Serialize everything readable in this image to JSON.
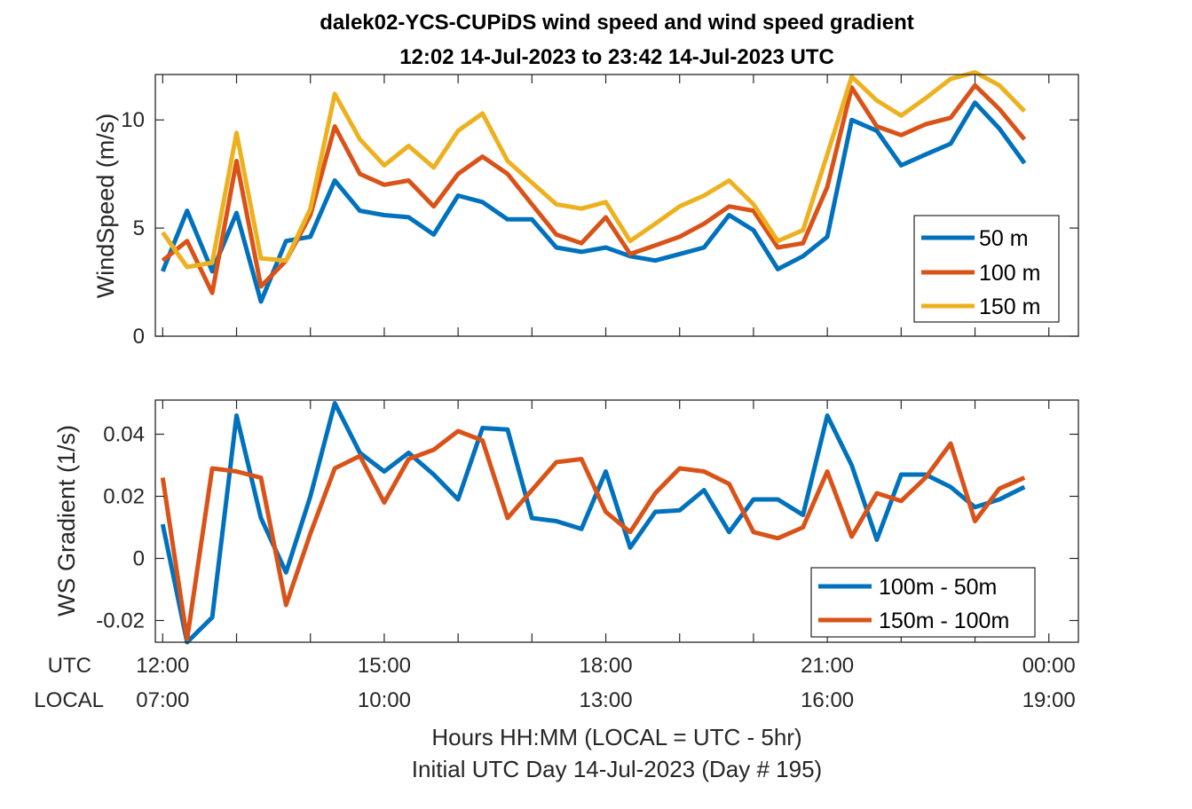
{
  "title": {
    "line1": "dalek02-YCS-CUPiDS  wind speed and wind speed gradient",
    "line2": "12:02 14-Jul-2023 to 23:42 14-Jul-2023  UTC"
  },
  "colors": {
    "blue": "#0072BD",
    "orange": "#D95319",
    "yellow": "#EDB120"
  },
  "chart_data": [
    {
      "type": "line",
      "ylabel": "WindSpeed (m/s)",
      "ylim": [
        0,
        12.1
      ],
      "yticks": [
        0,
        5,
        10
      ],
      "xlim_hours": [
        11.9,
        24.4
      ],
      "legend_position": "bottom-right",
      "x_hours": [
        12.0,
        12.33,
        12.67,
        13.0,
        13.33,
        13.67,
        14.0,
        14.33,
        14.67,
        15.0,
        15.33,
        15.67,
        16.0,
        16.33,
        16.67,
        17.0,
        17.33,
        17.67,
        18.0,
        18.33,
        18.67,
        19.0,
        19.33,
        19.67,
        20.0,
        20.33,
        20.67,
        21.0,
        21.33,
        21.67,
        22.0,
        22.33,
        22.67,
        23.0,
        23.33,
        23.67
      ],
      "series": [
        {
          "name": "50 m",
          "color": "#0072BD",
          "values": [
            3.0,
            5.8,
            3.0,
            5.7,
            1.6,
            4.4,
            4.6,
            7.2,
            5.8,
            5.6,
            5.5,
            4.7,
            6.5,
            6.2,
            5.4,
            5.4,
            4.1,
            3.9,
            4.1,
            3.7,
            3.5,
            3.8,
            4.1,
            5.6,
            4.9,
            3.1,
            3.7,
            4.6,
            10.0,
            9.5,
            7.9,
            8.4,
            8.9,
            10.8,
            9.6,
            8.0
          ]
        },
        {
          "name": "100 m",
          "color": "#D95319",
          "values": [
            3.5,
            4.4,
            2.0,
            8.1,
            2.3,
            3.5,
            5.6,
            9.7,
            7.5,
            7.0,
            7.2,
            6.0,
            7.5,
            8.3,
            7.5,
            6.1,
            4.7,
            4.3,
            5.5,
            3.8,
            4.2,
            4.6,
            5.2,
            6.0,
            5.8,
            4.1,
            4.3,
            6.9,
            11.5,
            9.7,
            9.3,
            9.8,
            10.1,
            11.6,
            10.5,
            9.1
          ]
        },
        {
          "name": "150 m",
          "color": "#EDB120",
          "values": [
            4.8,
            3.2,
            3.4,
            9.4,
            3.6,
            3.5,
            5.9,
            11.2,
            9.1,
            7.9,
            8.8,
            7.8,
            9.5,
            10.3,
            8.1,
            7.1,
            6.1,
            5.9,
            6.2,
            4.4,
            5.2,
            6.0,
            6.5,
            7.2,
            6.1,
            4.4,
            4.9,
            8.4,
            12.0,
            10.9,
            10.2,
            11.0,
            11.9,
            12.2,
            11.6,
            10.4
          ]
        }
      ]
    },
    {
      "type": "line",
      "ylabel": "WS Gradient (1/s)",
      "ylim": [
        -0.027,
        0.051
      ],
      "yticks": [
        -0.02,
        0,
        0.02,
        0.04
      ],
      "xlim_hours": [
        11.9,
        24.4
      ],
      "xlabel": "Hours HH:MM  (LOCAL = UTC - 5hr)",
      "xlabel2": "Initial UTC Day 14-Jul-2023 (Day # 195)",
      "x_ticks_utc": [
        "12:00",
        "15:00",
        "18:00",
        "21:00",
        "00:00"
      ],
      "x_ticks_local": [
        "07:00",
        "10:00",
        "13:00",
        "16:00",
        "19:00"
      ],
      "x_row_labels": [
        "UTC",
        "LOCAL"
      ],
      "legend_position": "bottom-right",
      "x_hours": [
        12.0,
        12.33,
        12.67,
        13.0,
        13.33,
        13.67,
        14.0,
        14.33,
        14.67,
        15.0,
        15.33,
        15.67,
        16.0,
        16.33,
        16.67,
        17.0,
        17.33,
        17.67,
        18.0,
        18.33,
        18.67,
        19.0,
        19.33,
        19.67,
        20.0,
        20.33,
        20.67,
        21.0,
        21.33,
        21.67,
        22.0,
        22.33,
        22.67,
        23.0,
        23.33,
        23.67
      ],
      "series": [
        {
          "name": "100m - 50m",
          "color": "#0072BD",
          "values": [
            0.011,
            -0.027,
            -0.019,
            0.046,
            0.013,
            -0.0045,
            0.02,
            0.05,
            0.034,
            0.028,
            0.034,
            0.027,
            0.019,
            0.042,
            0.0415,
            0.013,
            0.012,
            0.0095,
            0.028,
            0.0035,
            0.015,
            0.0155,
            0.022,
            0.0085,
            0.019,
            0.019,
            0.014,
            0.046,
            0.03,
            0.006,
            0.027,
            0.027,
            0.023,
            0.0165,
            0.019,
            0.023
          ]
        },
        {
          "name": "150m - 100m",
          "color": "#D95319",
          "values": [
            0.026,
            -0.026,
            0.029,
            0.028,
            0.026,
            -0.015,
            0.008,
            0.029,
            0.033,
            0.018,
            0.032,
            0.035,
            0.041,
            0.038,
            0.013,
            0.022,
            0.031,
            0.032,
            0.015,
            0.0085,
            0.021,
            0.029,
            0.028,
            0.024,
            0.0085,
            0.0065,
            0.01,
            0.028,
            0.007,
            0.021,
            0.0185,
            0.026,
            0.037,
            0.012,
            0.0225,
            0.026
          ]
        }
      ]
    }
  ]
}
